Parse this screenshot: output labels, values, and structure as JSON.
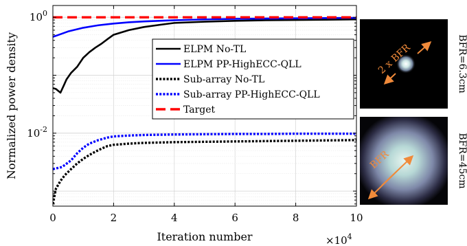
{
  "chart_data": {
    "type": "line",
    "xlabel": "Iteration number",
    "ylabel": "Normalized power density",
    "x_multiplier_label": "×10",
    "x_multiplier_exp": "4",
    "xlim": [
      0,
      100000
    ],
    "ylim": [
      0.00055,
      1.6
    ],
    "yscale": "log",
    "x_ticks": [
      0,
      20000,
      40000,
      60000,
      80000,
      100000
    ],
    "x_tick_labels": [
      "0",
      "2",
      "4",
      "6",
      "8",
      "10"
    ],
    "y_ticks": [
      1,
      0.01
    ],
    "y_tick_base": "10",
    "y_tick_exps": [
      "0",
      "-2"
    ],
    "grid": true,
    "legend_position": "center-right",
    "series": [
      {
        "name": "ELPM No-TL",
        "color": "#000000",
        "dash": "solid",
        "x": [
          0,
          1000,
          2500,
          3500,
          4500,
          6000,
          8000,
          10000,
          12000,
          14000,
          16000,
          18000,
          20000,
          25000,
          30000,
          35000,
          40000,
          50000,
          60000,
          70000,
          80000,
          90000,
          100000
        ],
        "y": [
          0.06,
          0.058,
          0.05,
          0.065,
          0.085,
          0.11,
          0.14,
          0.2,
          0.25,
          0.3,
          0.35,
          0.42,
          0.5,
          0.6,
          0.68,
          0.74,
          0.8,
          0.84,
          0.87,
          0.89,
          0.9,
          0.91,
          0.92
        ]
      },
      {
        "name": "ELPM PP-HighECC-QLL",
        "color": "#0000ff",
        "dash": "solid",
        "x": [
          0,
          2000,
          5000,
          10000,
          15000,
          20000,
          25000,
          30000,
          40000,
          50000,
          60000,
          70000,
          80000,
          90000,
          100000
        ],
        "y": [
          0.46,
          0.5,
          0.57,
          0.66,
          0.73,
          0.78,
          0.82,
          0.85,
          0.89,
          0.92,
          0.94,
          0.95,
          0.96,
          0.97,
          0.98
        ]
      },
      {
        "name": "Sub-array No-TL",
        "color": "#000000",
        "dash": "dotted",
        "x": [
          0,
          1000,
          2500,
          4000,
          6000,
          8000,
          10000,
          12000,
          14000,
          16000,
          18000,
          20000,
          25000,
          30000,
          40000,
          50000,
          60000,
          70000,
          80000,
          90000,
          100000
        ],
        "y": [
          0.0006,
          0.0011,
          0.0015,
          0.0019,
          0.0024,
          0.003,
          0.0036,
          0.0042,
          0.0048,
          0.0054,
          0.006,
          0.0063,
          0.0066,
          0.0068,
          0.007,
          0.0071,
          0.0072,
          0.0073,
          0.0074,
          0.0075,
          0.0076
        ]
      },
      {
        "name": "Sub-array PP-HighECC-QLL",
        "color": "#0000ff",
        "dash": "dotted",
        "x": [
          0,
          3000,
          6000,
          8000,
          10000,
          12000,
          15000,
          18000,
          20000,
          25000,
          30000,
          40000,
          50000,
          60000,
          70000,
          80000,
          90000,
          100000
        ],
        "y": [
          0.0024,
          0.0026,
          0.0034,
          0.0045,
          0.0056,
          0.0066,
          0.0076,
          0.0084,
          0.0088,
          0.0091,
          0.0093,
          0.0095,
          0.0096,
          0.0097,
          0.0097,
          0.0098,
          0.0098,
          0.0098
        ]
      },
      {
        "name": "Target",
        "color": "#ff0000",
        "dash": "dashed",
        "x": [
          0,
          100000
        ],
        "y": [
          1.0,
          1.0
        ]
      }
    ]
  },
  "side_panels": {
    "top_annotation": "2 x BFR",
    "top_caption": "BFR=6.3cm",
    "bottom_annotation": "BFR",
    "bottom_caption": "BFR=45cm"
  }
}
